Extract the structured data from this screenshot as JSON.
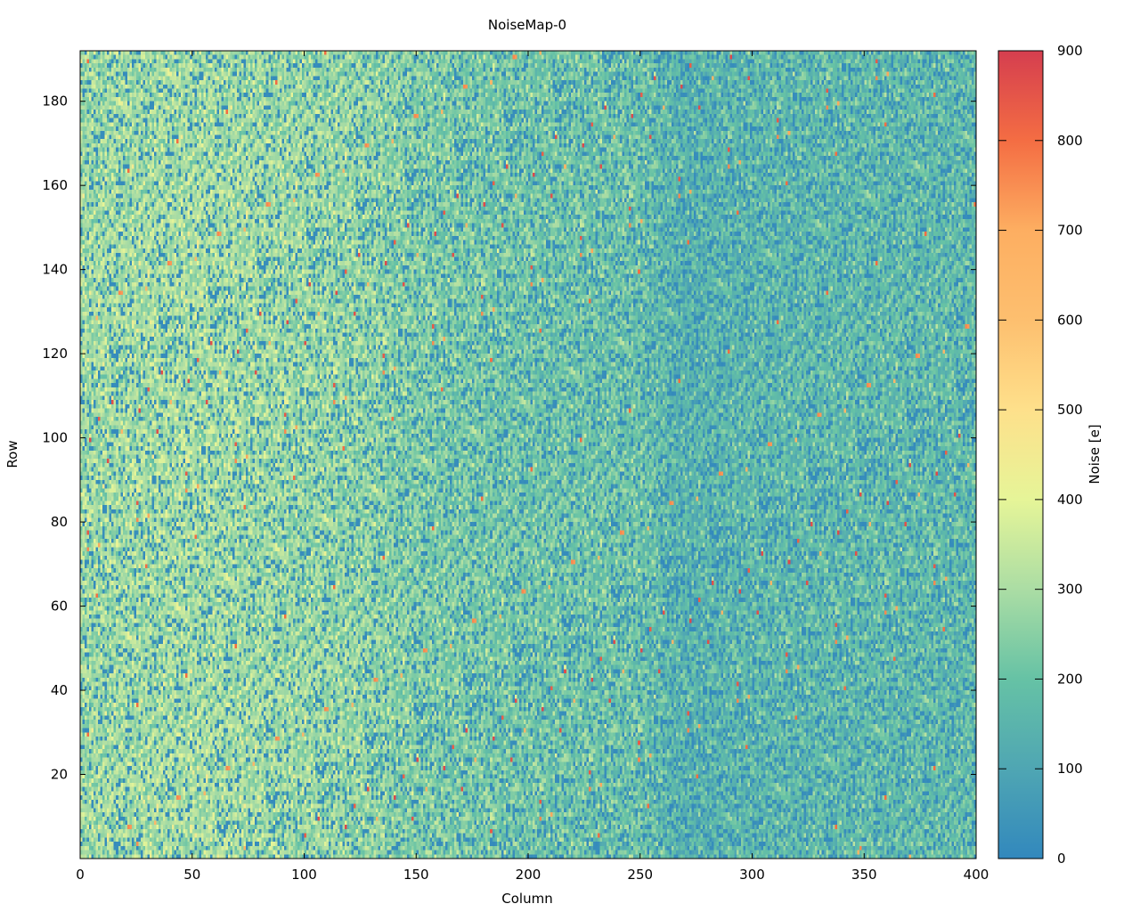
{
  "chart_data": {
    "type": "heatmap",
    "title": "NoiseMap-0",
    "xlabel": "Column",
    "ylabel": "Row",
    "colorbar_label": "Noise [e]",
    "xlim": [
      0,
      400
    ],
    "ylim": [
      0,
      192
    ],
    "clim": [
      0,
      900
    ],
    "x_ticks": [
      0,
      50,
      100,
      150,
      200,
      250,
      300,
      350,
      400
    ],
    "y_ticks": [
      20,
      40,
      60,
      80,
      100,
      120,
      140,
      160,
      180
    ],
    "colorbar_ticks": [
      0,
      100,
      200,
      300,
      400,
      500,
      600,
      700,
      800,
      900
    ],
    "grid": false,
    "colormap": "Spectral_r",
    "colormap_stops": [
      {
        "value": 0,
        "color": "#3288bd"
      },
      {
        "value": 100,
        "color": "#4fa6b3"
      },
      {
        "value": 200,
        "color": "#66c2a5"
      },
      {
        "value": 300,
        "color": "#abdda4"
      },
      {
        "value": 400,
        "color": "#e6f598"
      },
      {
        "value": 500,
        "color": "#fee08b"
      },
      {
        "value": 600,
        "color": "#fdbf6f"
      },
      {
        "value": 700,
        "color": "#fdae61"
      },
      {
        "value": 800,
        "color": "#f46d43"
      },
      {
        "value": 900,
        "color": "#d53e4f"
      }
    ],
    "column_profile": [
      {
        "x": 0,
        "mean": 290
      },
      {
        "x": 50,
        "mean": 300
      },
      {
        "x": 100,
        "mean": 280
      },
      {
        "x": 125,
        "mean": 270
      },
      {
        "x": 150,
        "mean": 240
      },
      {
        "x": 200,
        "mean": 215
      },
      {
        "x": 250,
        "mean": 205
      },
      {
        "x": 268,
        "mean": 150
      },
      {
        "x": 300,
        "mean": 170
      },
      {
        "x": 350,
        "mean": 180
      },
      {
        "x": 400,
        "mean": 180
      }
    ],
    "dead_pixel_fraction": 0.14,
    "hot_pixel_fraction": 0.004
  }
}
